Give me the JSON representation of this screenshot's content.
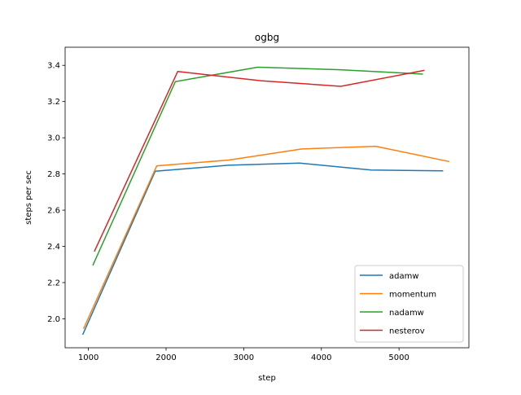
{
  "chart_data": {
    "type": "line",
    "title": "ogbg",
    "xlabel": "step",
    "ylabel": "steps per sec",
    "xlim": [
      700,
      5900
    ],
    "ylim": [
      1.84,
      3.5
    ],
    "xticks": [
      1000,
      2000,
      3000,
      4000,
      5000
    ],
    "yticks": [
      2.0,
      2.2,
      2.4,
      2.6,
      2.8,
      3.0,
      3.2,
      3.4
    ],
    "xtick_labels": [
      "1000",
      "2000",
      "3000",
      "4000",
      "5000"
    ],
    "ytick_labels": [
      "2.0",
      "2.2",
      "2.4",
      "2.6",
      "2.8",
      "3.0",
      "3.2",
      "3.4"
    ],
    "grid": false,
    "legend_position": "lower right",
    "series": [
      {
        "name": "adamw",
        "color": "#1f77b4",
        "x": [
          930,
          1860,
          2800,
          3720,
          4640,
          5560
        ],
        "y": [
          1.915,
          2.815,
          2.848,
          2.86,
          2.822,
          2.817
        ]
      },
      {
        "name": "momentum",
        "color": "#ff7f0e",
        "x": [
          940,
          1880,
          2810,
          3750,
          4700,
          5640
        ],
        "y": [
          1.948,
          2.845,
          2.877,
          2.938,
          2.953,
          2.869
        ]
      },
      {
        "name": "nadamw",
        "color": "#2ca02c",
        "x": [
          1060,
          2120,
          3180,
          4240,
          5300
        ],
        "y": [
          2.298,
          3.31,
          3.39,
          3.376,
          3.352
        ]
      },
      {
        "name": "nesterov",
        "color": "#d62728",
        "x": [
          1080,
          2150,
          3220,
          4250,
          5320
        ],
        "y": [
          2.375,
          3.366,
          3.315,
          3.284,
          3.372
        ]
      }
    ]
  }
}
